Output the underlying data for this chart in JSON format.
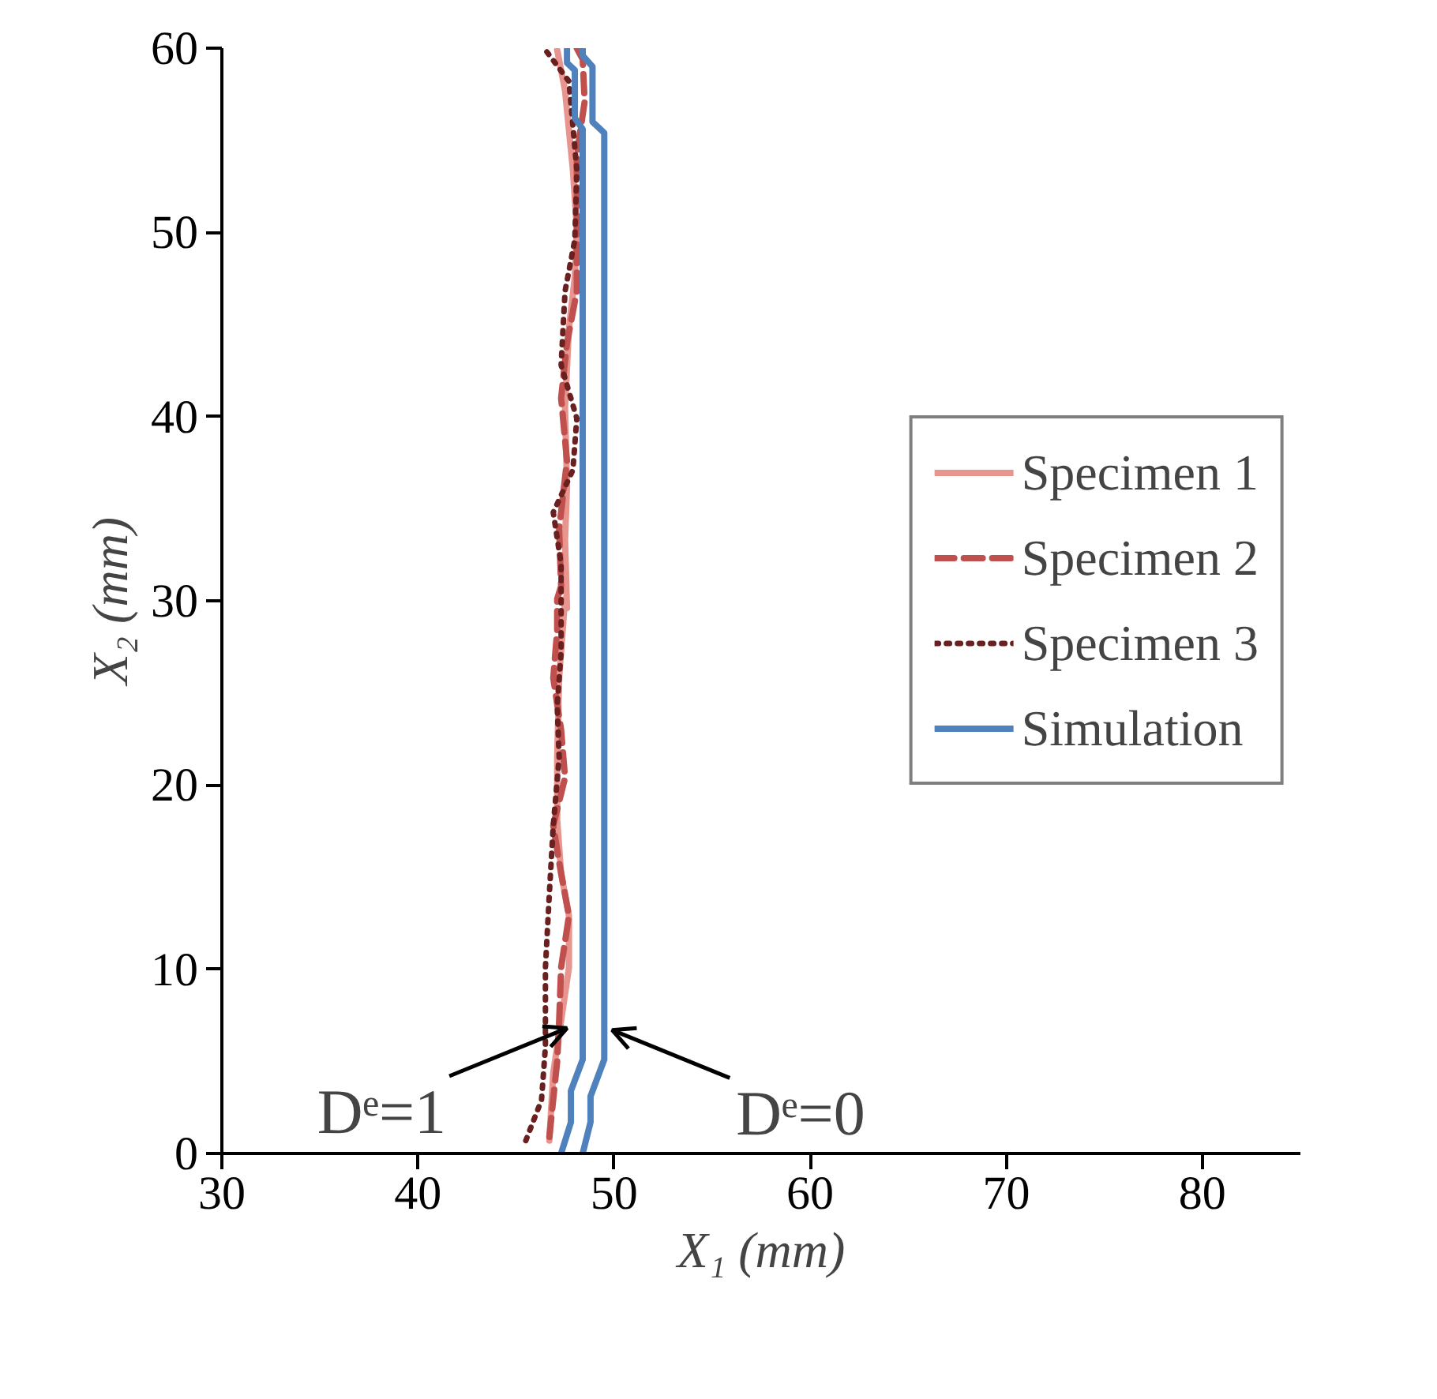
{
  "chart_data": {
    "type": "line",
    "xlabel": "X₁ (mm)",
    "ylabel": "X₂ (mm)",
    "xlim": [
      30,
      85
    ],
    "ylim": [
      0,
      60
    ],
    "xticks": [
      30,
      40,
      50,
      60,
      70,
      80
    ],
    "yticks": [
      0,
      10,
      20,
      30,
      40,
      50,
      60
    ],
    "grid": false,
    "legend": "right",
    "series": [
      {
        "name": "Specimen 1",
        "color": "#e8948f",
        "line_style": "solid",
        "x": [
          46.7,
          46.9,
          47.3,
          47.7,
          47.7,
          47.3,
          47.1,
          47.1,
          47.2,
          47.5,
          47.6,
          47.5,
          47.6,
          47.5,
          47.7,
          48.0,
          48.1,
          47.9,
          47.5,
          47.1
        ],
        "values": [
          0.7,
          4.4,
          7.2,
          10.1,
          12.9,
          15.2,
          18.1,
          21.5,
          25.8,
          30.1,
          29.6,
          33.3,
          36.2,
          40.5,
          44.8,
          47.6,
          50.2,
          53.4,
          57.7,
          59.9
        ]
      },
      {
        "name": "Specimen 2",
        "color": "#c0504d",
        "line_style": "dashed",
        "x": [
          46.7,
          47.1,
          47.2,
          47.3,
          47.7,
          47.2,
          46.9,
          47.5,
          47.3,
          46.9,
          47.1,
          47.1,
          47.3,
          47.2,
          47.6,
          47.3,
          47.6,
          48.1,
          48.1,
          48.1,
          48.5,
          48.4,
          48.1
        ],
        "values": [
          0.9,
          5.0,
          7.2,
          10.1,
          12.9,
          15.8,
          17.8,
          20.4,
          23.0,
          25.8,
          28.4,
          30.1,
          30.8,
          33.9,
          37.6,
          41.0,
          44.0,
          46.8,
          49.6,
          54.2,
          57.1,
          59.4,
          60
        ]
      },
      {
        "name": "Specimen 3",
        "color": "#6b2020",
        "line_style": "dotted",
        "x": [
          45.5,
          46.3,
          46.5,
          46.5,
          46.7,
          46.9,
          47.2,
          47.1,
          47.3,
          47.3,
          47.3,
          46.9,
          47.9,
          48.1,
          47.3,
          47.5,
          48.0,
          48.1,
          47.7,
          46.5
        ],
        "values": [
          0.7,
          2.9,
          5.8,
          10.1,
          14.1,
          17.8,
          21.5,
          24.3,
          27.2,
          30.1,
          32.0,
          34.8,
          37.1,
          39.9,
          42.8,
          46.8,
          49.6,
          53.4,
          58.2,
          59.9
        ]
      },
      {
        "name": "Simulation",
        "color": "#4f81bd",
        "line_style": "solid",
        "x": [
          47.3,
          47.8,
          47.8,
          48.4,
          48.4,
          48.0,
          48.0,
          47.6,
          47.6
        ],
        "values": [
          0,
          1.7,
          3.4,
          5.1,
          55.6,
          56.2,
          58.8,
          59.2,
          60
        ]
      },
      {
        "color": "#4f81bd",
        "line_style": "solid",
        "x": [
          48.4,
          48.8,
          48.8,
          49.5,
          49.5,
          48.9,
          48.9,
          48.4,
          48.4
        ],
        "values": [
          0,
          1.7,
          3.1,
          5.1,
          55.4,
          56.0,
          59.0,
          59.6,
          60
        ]
      }
    ],
    "annotations": [
      {
        "text": "Dᵉ=1",
        "x": 47.6,
        "y": 6.8
      },
      {
        "text": "Dᵉ=0",
        "x": 49.9,
        "y": 6.7
      }
    ]
  }
}
